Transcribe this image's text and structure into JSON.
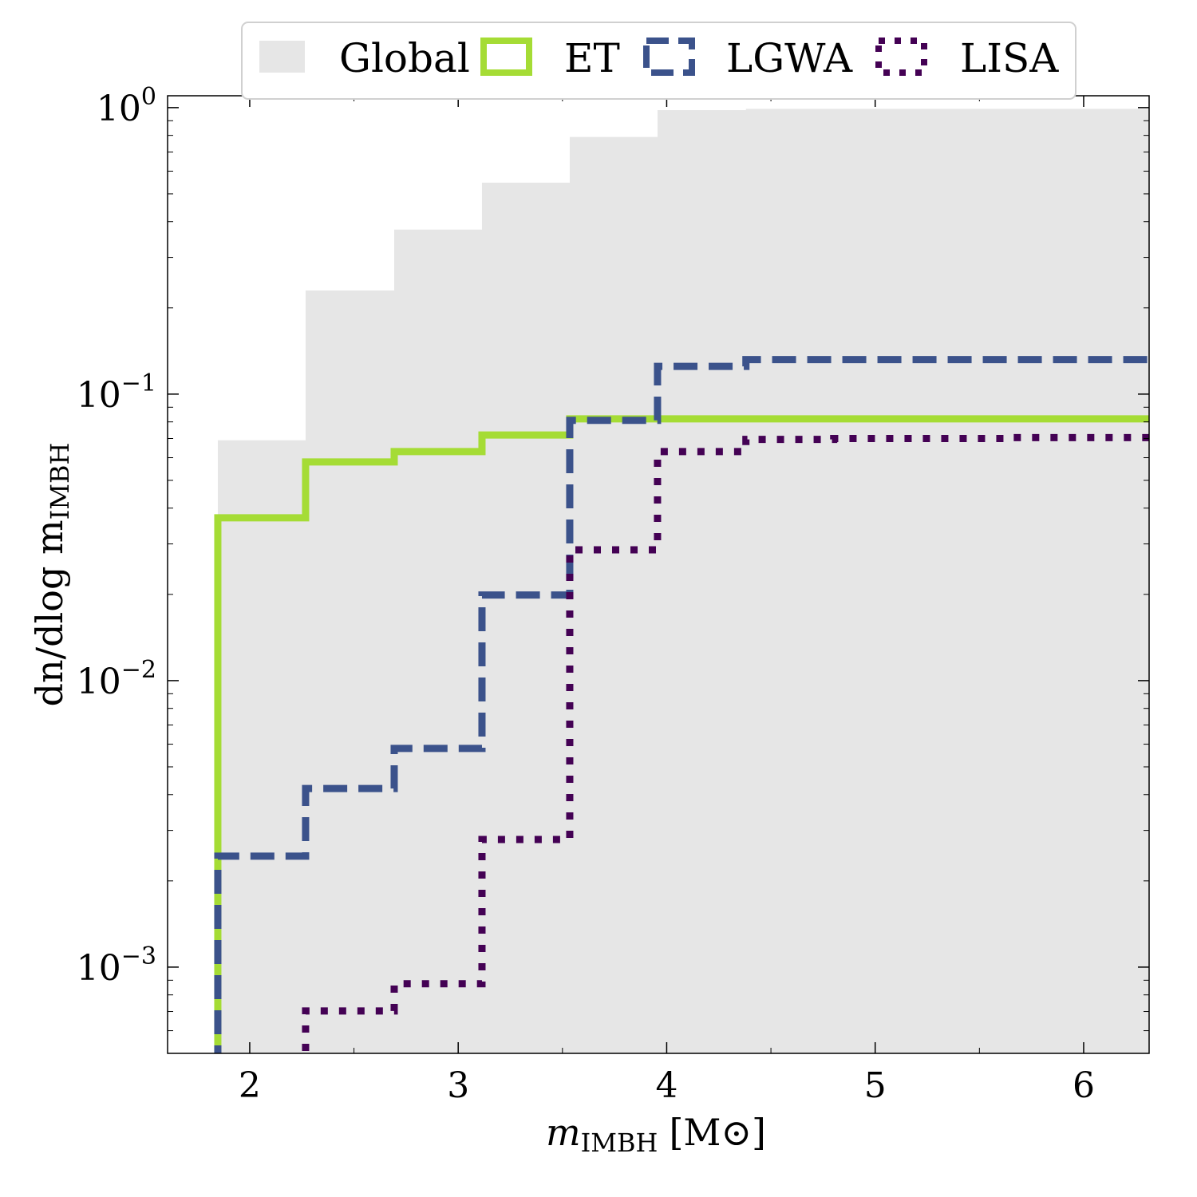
{
  "chart_data": {
    "type": "step-histogram",
    "xlabel": {
      "main": "m",
      "sub": "IMBH",
      "unit": "[M⊙]"
    },
    "ylabel": {
      "main": "dn/dlog m",
      "sub": "IMBH"
    },
    "xlim": [
      1.606,
      6.314
    ],
    "ylim": [
      0.0005,
      1.1
    ],
    "yscale": "log",
    "x_ticks": [
      2,
      3,
      4,
      5,
      6
    ],
    "x_tick_labels": [
      "2",
      "3",
      "4",
      "5",
      "6"
    ],
    "y_ticks": [
      1,
      0.1,
      0.01,
      0.001
    ],
    "y_tick_labels": [
      {
        "base": "10",
        "exp": "0"
      },
      {
        "base": "10",
        "exp": "−1"
      },
      {
        "base": "10",
        "exp": "−2"
      },
      {
        "base": "10",
        "exp": "−3"
      }
    ],
    "grid": false,
    "legend_position": "top-center",
    "bin_edges": [
      1.847,
      2.268,
      2.693,
      3.114,
      3.535,
      3.956,
      4.38,
      4.801,
      5.222,
      5.643,
      6.064,
      6.485
    ],
    "series": [
      {
        "name": "Global",
        "style": "filled",
        "color": "#e6e6e6",
        "values": [
          0.069,
          0.23,
          0.375,
          0.547,
          0.79,
          0.98,
          0.99,
          0.99,
          0.99,
          0.99,
          0.99
        ]
      },
      {
        "name": "ET",
        "style": "solid",
        "color": "#a5dc35",
        "values": [
          0.037,
          0.058,
          0.063,
          0.072,
          0.082,
          0.082,
          0.082,
          0.082,
          0.082,
          0.082,
          0.082
        ]
      },
      {
        "name": "LGWA",
        "style": "dashed",
        "color": "#3b528b",
        "values": [
          0.00244,
          0.0042,
          0.0058,
          0.0199,
          0.081,
          0.125,
          0.132,
          0.132,
          0.132,
          0.132,
          0.132
        ]
      },
      {
        "name": "LISA",
        "style": "dotted",
        "color": "#440154",
        "values": [
          null,
          0.000703,
          0.000875,
          0.00279,
          0.0286,
          0.063,
          0.0695,
          0.07,
          0.07,
          0.0705,
          0.0705
        ]
      }
    ]
  }
}
